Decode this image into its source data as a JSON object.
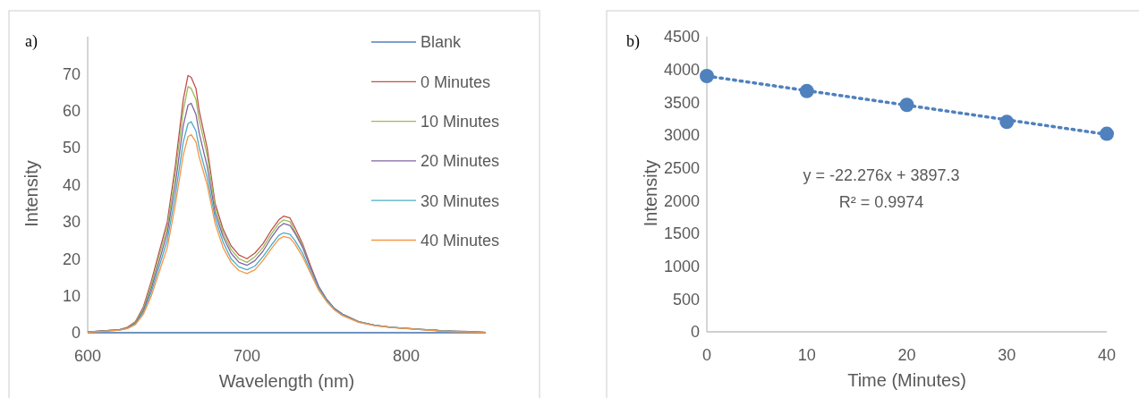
{
  "chart_data": [
    {
      "type": "line",
      "annotations": [
        "a)"
      ],
      "xlabel": "Wavelength (nm)",
      "ylabel": "Intensity",
      "xlim": [
        600,
        850
      ],
      "ylim": [
        0,
        80
      ],
      "xticks": [
        600,
        700,
        800
      ],
      "yticks": [
        0,
        10,
        20,
        30,
        40,
        50,
        60,
        70
      ],
      "legend": "right",
      "marker": "none",
      "line_style": "solid",
      "x": [
        600,
        610,
        620,
        625,
        630,
        635,
        640,
        645,
        650,
        655,
        660,
        663,
        665,
        668,
        670,
        675,
        680,
        685,
        690,
        695,
        700,
        705,
        710,
        715,
        720,
        723,
        727,
        730,
        735,
        740,
        745,
        750,
        755,
        760,
        770,
        780,
        790,
        800,
        810,
        820,
        830,
        840,
        850
      ],
      "series": [
        {
          "name": "Blank",
          "color": "#4f81bd",
          "x": [
            600,
            850
          ],
          "values": [
            0,
            0
          ]
        },
        {
          "name": "0 Minutes",
          "color": "#c0504d",
          "values": [
            0.2,
            0.5,
            0.8,
            1.5,
            3,
            7,
            14,
            22,
            30,
            45,
            63,
            69.5,
            69,
            66,
            60,
            50,
            35,
            28,
            23.5,
            21,
            20,
            21.5,
            24,
            27.5,
            30.5,
            31.5,
            31,
            28.5,
            24,
            18,
            12.5,
            9,
            6.5,
            5,
            3,
            2,
            1.5,
            1.2,
            0.9,
            0.6,
            0.4,
            0.3,
            0.1
          ]
        },
        {
          "name": "10 Minutes",
          "color": "#9bbb59",
          "values": [
            0.2,
            0.5,
            0.8,
            1.4,
            2.8,
            6.5,
            13,
            21,
            28.5,
            43,
            60,
            66.5,
            66,
            63,
            57.5,
            48,
            34,
            27,
            22.5,
            20,
            19,
            20.5,
            23,
            26.5,
            29.5,
            30.5,
            30,
            27.5,
            23.5,
            17.5,
            12.5,
            9,
            6.5,
            5,
            3,
            2,
            1.5,
            1.2,
            0.9,
            0.6,
            0.4,
            0.3,
            0.1
          ]
        },
        {
          "name": "20 Minutes",
          "color": "#8064a2",
          "values": [
            0.2,
            0.5,
            0.8,
            1.3,
            2.6,
            6,
            12,
            19.5,
            27,
            40,
            56,
            61.5,
            62,
            59,
            54,
            45,
            32.5,
            26,
            21.5,
            19,
            18.2,
            19.5,
            22,
            25.5,
            28.5,
            29.5,
            29,
            27,
            23,
            17.5,
            12.5,
            9,
            6.5,
            5,
            3,
            2,
            1.5,
            1.2,
            0.9,
            0.6,
            0.4,
            0.3,
            0.1
          ]
        },
        {
          "name": "30 Minutes",
          "color": "#4bacc6",
          "values": [
            0.2,
            0.4,
            0.7,
            1.2,
            2.4,
            5.5,
            11,
            18,
            25,
            37,
            51.5,
            56.5,
            57,
            54.5,
            50,
            42,
            31,
            24.5,
            20,
            17.8,
            17,
            18,
            20.5,
            23.5,
            26.3,
            27,
            26.6,
            25,
            21.5,
            16.5,
            12,
            8.7,
            6.3,
            4.8,
            2.9,
            2,
            1.5,
            1.1,
            0.8,
            0.6,
            0.4,
            0.2,
            0.1
          ]
        },
        {
          "name": "40 Minutes",
          "color": "#f79646",
          "values": [
            0.1,
            0.4,
            0.7,
            1.1,
            2.2,
            5,
            10,
            16.5,
            23,
            34.5,
            48,
            53,
            53.5,
            51.5,
            47.5,
            40,
            29.5,
            23,
            19,
            16.8,
            16,
            17,
            19.5,
            22.5,
            25.3,
            26,
            25.6,
            24,
            20.5,
            16,
            11.5,
            8.4,
            6.1,
            4.6,
            2.8,
            1.9,
            1.4,
            1.1,
            0.8,
            0.5,
            0.3,
            0.2,
            0.1
          ]
        }
      ]
    },
    {
      "type": "scatter",
      "annotations": [
        "b)",
        "y = -22.276x + 3897.3",
        "R² = 0.9974"
      ],
      "xlabel": "Time (Minutes)",
      "ylabel": "Intensity",
      "xlim": [
        0,
        40
      ],
      "ylim": [
        0,
        4500
      ],
      "xticks": [
        0,
        10,
        20,
        30,
        40
      ],
      "yticks": [
        0,
        500,
        1000,
        1500,
        2000,
        2500,
        3000,
        3500,
        4000,
        4500
      ],
      "series": [
        {
          "marker": "circle",
          "color": "#4f81bd",
          "x": [
            0,
            10,
            20,
            30,
            40
          ],
          "values": [
            3900,
            3670,
            3460,
            3200,
            3020
          ]
        },
        {
          "type": "line",
          "line_style": "dotted",
          "color": "#4f81bd",
          "x": [
            0,
            40
          ],
          "values": [
            3900,
            3010
          ]
        }
      ]
    }
  ]
}
